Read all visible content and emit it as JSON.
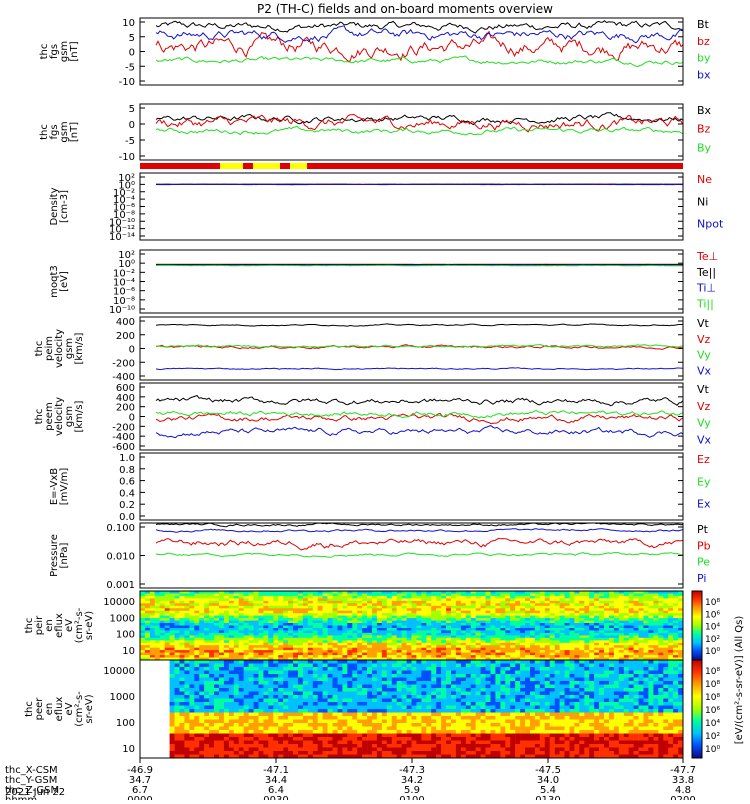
{
  "title": "P2 (TH-C) fields and on-board moments overview",
  "palette": {
    "black": "#000000",
    "red": "#e00000",
    "green": "#22dd22",
    "blue": "#1010d0",
    "yellow": "#ffff00"
  },
  "chart_data": [
    {
      "type": "line",
      "id": "fgs",
      "ylabel": [
        "thc",
        "fgs",
        "gsm",
        "[nT]"
      ],
      "ylim": [
        -10,
        10
      ],
      "yticks": [
        "10",
        "5",
        "0",
        "-5",
        "-10"
      ],
      "series": [
        {
          "name": "Bt",
          "color": "#000000",
          "base": 7.5,
          "noise": 1.2
        },
        {
          "name": "bz",
          "color": "#e00000",
          "base": 1.5,
          "noise": 2.5
        },
        {
          "name": "by",
          "color": "#22dd22",
          "base": -2.8,
          "noise": 0.8
        },
        {
          "name": "bx",
          "color": "#1010d0",
          "base": 5.0,
          "noise": 1.5
        }
      ]
    },
    {
      "type": "line",
      "id": "fgs2",
      "ylabel": [
        "thc",
        "fgs",
        "gsm",
        "[nT]"
      ],
      "ylim": [
        -15,
        10
      ],
      "yticks": [
        "5",
        "0",
        "-5",
        "-10"
      ],
      "series": [
        {
          "name": "Bx",
          "color": "#000000",
          "base": 3.5,
          "noise": 1.5
        },
        {
          "name": "Bz",
          "color": "#e00000",
          "base": 1.5,
          "noise": 2.5
        },
        {
          "name": "By",
          "color": "#22dd22",
          "base": -2.0,
          "noise": 1.2
        }
      ]
    },
    {
      "type": "line",
      "id": "density",
      "ylabel": [
        "Density",
        "[cm-3]"
      ],
      "ylim": [
        -15,
        3
      ],
      "yscale": "log",
      "yticks": [
        "10²",
        "10⁰",
        "10⁻²",
        "10⁻⁴",
        "10⁻⁶",
        "10⁻⁸",
        "10⁻¹⁰",
        "10⁻¹²",
        "10⁻¹⁴"
      ],
      "series": [
        {
          "name": "Ne",
          "color": "#e00000",
          "base": 1.0,
          "noise": 0.1
        },
        {
          "name": "Ni",
          "color": "#000000",
          "base": 0.9,
          "noise": 0.1
        },
        {
          "name": "Npot",
          "color": "#1010d0",
          "base": 0.8,
          "noise": 0.1
        }
      ]
    },
    {
      "type": "line",
      "id": "temp",
      "ylabel": [
        "moqt3",
        "[eV]"
      ],
      "ylim": [
        -15,
        4
      ],
      "yscale": "log",
      "yticks": [
        "10²",
        "10⁰",
        "10⁻²",
        "10⁻⁴",
        "10⁻⁶",
        "10⁻⁸",
        "10⁻¹⁰"
      ],
      "series": [
        {
          "name": "Te⊥",
          "color": "#e00000",
          "base": 0.5,
          "noise": 0.05
        },
        {
          "name": "Te||",
          "color": "#000000",
          "base": 0.4,
          "noise": 0.05
        },
        {
          "name": "Ti⊥",
          "color": "#1010d0",
          "base": 0.3,
          "noise": 0.05
        },
        {
          "name": "Ti||",
          "color": "#22dd22",
          "base": 0.2,
          "noise": 0.05
        }
      ]
    },
    {
      "type": "line",
      "id": "peim",
      "ylabel": [
        "thc",
        "peim",
        "velocity",
        "gsm",
        "[km/s]"
      ],
      "ylim": [
        -500,
        450
      ],
      "yticks": [
        "400",
        "200",
        "0",
        "-200",
        "-400"
      ],
      "series": [
        {
          "name": "Vt",
          "color": "#000000",
          "base": 330,
          "noise": 10
        },
        {
          "name": "Vz",
          "color": "#e00000",
          "base": 0,
          "noise": 20
        },
        {
          "name": "Vy",
          "color": "#22dd22",
          "base": 10,
          "noise": 15
        },
        {
          "name": "Vx",
          "color": "#1010d0",
          "base": -330,
          "noise": 10
        }
      ]
    },
    {
      "type": "line",
      "id": "peem",
      "ylabel": [
        "thc",
        "peem",
        "velocity",
        "gsm",
        "[km/s]"
      ],
      "ylim": [
        -650,
        650
      ],
      "yticks": [
        "600",
        "400",
        "200",
        "0",
        "-200",
        "-400",
        "-600"
      ],
      "series": [
        {
          "name": "Vt",
          "color": "#000000",
          "base": 300,
          "noise": 60
        },
        {
          "name": "Vz",
          "color": "#e00000",
          "base": -30,
          "noise": 60
        },
        {
          "name": "Vy",
          "color": "#22dd22",
          "base": 60,
          "noise": 50
        },
        {
          "name": "Vx",
          "color": "#1010d0",
          "base": -300,
          "noise": 60
        }
      ]
    },
    {
      "type": "line",
      "id": "efield",
      "ylabel": [
        "E=-VxB",
        "[mV/m]"
      ],
      "ylim": [
        0,
        1
      ],
      "yticks": [
        "1.0",
        "0.8",
        "0.6",
        "0.4",
        "0.2",
        "0.0"
      ],
      "series": [
        {
          "name": "Ez",
          "color": "#e00000"
        },
        {
          "name": "Ey",
          "color": "#22dd22"
        },
        {
          "name": "Ex",
          "color": "#1010d0"
        }
      ]
    },
    {
      "type": "line",
      "id": "pressure",
      "ylabel": [
        "Pressure",
        "[nPa]"
      ],
      "ylim": [
        0.001,
        0.1
      ],
      "yscale": "log",
      "yticks": [
        "0.100",
        "0.010",
        "0.001"
      ],
      "series": [
        {
          "name": "Pt",
          "color": "#000000",
          "base": 0.09,
          "noise": 0.015
        },
        {
          "name": "Pb",
          "color": "#e00000",
          "base": 0.025,
          "noise": 0.012
        },
        {
          "name": "Pe",
          "color": "#22dd22",
          "base": 0.011,
          "noise": 0.002
        },
        {
          "name": "Pi",
          "color": "#1010d0",
          "base": 0.06,
          "noise": 0.01
        }
      ]
    },
    {
      "type": "heatmap",
      "id": "peir",
      "ylabel": [
        "thc",
        "peir",
        "en",
        "eflux",
        "eV",
        "(cm²-s-",
        "sr-eV)"
      ],
      "yscale": "log",
      "ylim": [
        5,
        30000
      ],
      "yticks": [
        "10000",
        "1000",
        "100",
        "10"
      ],
      "colorbar_ticks": [
        "10⁸",
        "10⁶",
        "10⁴",
        "10²",
        "10⁰"
      ]
    },
    {
      "type": "heatmap",
      "id": "peer",
      "ylabel": [
        "thc",
        "peer",
        "en",
        "eflux",
        "eV",
        "(cm²-s-",
        "sr-eV)"
      ],
      "yscale": "log",
      "ylim": [
        5,
        30000
      ],
      "yticks": [
        "10000",
        "1000",
        "100",
        "10"
      ],
      "colorbar_ticks": [
        "10⁸",
        "10⁸",
        "10⁸",
        "10⁶",
        "10⁴",
        "10²",
        "10⁰"
      ],
      "colorbar_label": "[eV/(cm²-s-sr-eV)] (All Qs)"
    }
  ],
  "xaxis": {
    "rows": [
      {
        "label": "thc_X-CSM",
        "values": [
          "-46.9",
          "-47.1",
          "-47.3",
          "-47.5",
          "-47.7"
        ]
      },
      {
        "label": "thc_Y-GSM",
        "values": [
          "34.7",
          "34.4",
          "34.2",
          "34.0",
          "33.8"
        ]
      },
      {
        "label": "thc_Z-GSM",
        "values": [
          "6.7",
          "6.4",
          "5.9",
          "5.4",
          "4.8"
        ]
      },
      {
        "label": "hhmm",
        "values": [
          "0000",
          "0030",
          "0100",
          "0130",
          "0200"
        ]
      }
    ],
    "date": "2021 Jun 22"
  }
}
